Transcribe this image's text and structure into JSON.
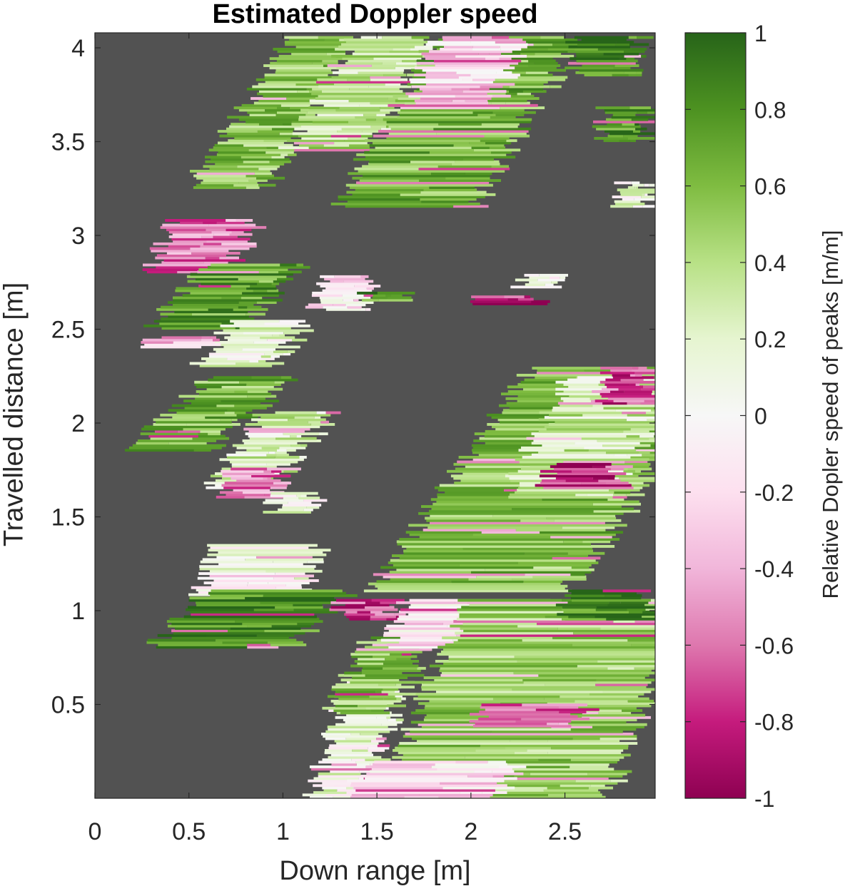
{
  "chart_data": {
    "type": "heatmap",
    "title": "Estimated Doppler speed",
    "xlabel": "Down range [m]",
    "ylabel": "Travelled distance [m]",
    "xlim": [
      0,
      2.98
    ],
    "ylim": [
      0,
      4.08
    ],
    "xticks": [
      "0",
      "0.5",
      "1",
      "1.5",
      "2",
      "2.5"
    ],
    "yticks": [
      "0.5",
      "1",
      "1.5",
      "2",
      "2.5",
      "3",
      "3.5",
      "4"
    ],
    "background_color": "#525252",
    "colorbar": {
      "label": "Relative Dopler speed of peaks [m/m]",
      "limits": [
        -1,
        1
      ],
      "ticks": [
        "1",
        "0.8",
        "0.6",
        "0.4",
        "0.2",
        "0",
        "-0.2",
        "-0.4",
        "-0.6",
        "-0.8",
        "-1"
      ],
      "colormap": [
        "#8e0152",
        "#c51b7d",
        "#de77ae",
        "#f1b6da",
        "#fde0ef",
        "#f7f7f7",
        "#e6f5d0",
        "#b8e186",
        "#7fbc41",
        "#4d9221",
        "#276419"
      ]
    },
    "clusters": [
      {
        "x0": 0.78,
        "x1": 1.18,
        "y0": 3.25,
        "y1": 4.06,
        "shift": -0.55,
        "v": 0.55
      },
      {
        "x0": 1.2,
        "x1": 1.65,
        "y0": 3.45,
        "y1": 4.06,
        "shift": -0.35,
        "v": 0.35
      },
      {
        "x0": 1.55,
        "x1": 2.3,
        "y0": 3.15,
        "y1": 4.06,
        "shift": -0.55,
        "v": 0.62
      },
      {
        "x0": 1.75,
        "x1": 2.2,
        "y0": 3.7,
        "y1": 4.06,
        "shift": -0.15,
        "v": -0.25
      },
      {
        "x0": 2.55,
        "x1": 2.9,
        "y0": 3.85,
        "y1": 4.06,
        "shift": 0.0,
        "v": 0.85
      },
      {
        "x0": 2.7,
        "x1": 2.95,
        "y0": 3.5,
        "y1": 3.68,
        "shift": 0.0,
        "v": 0.78
      },
      {
        "x0": 2.8,
        "x1": 2.96,
        "y0": 3.15,
        "y1": 3.28,
        "shift": 0.0,
        "v": 0.15
      },
      {
        "x0": 0.35,
        "x1": 0.8,
        "y0": 2.8,
        "y1": 3.08,
        "shift": -0.15,
        "v": -0.55
      },
      {
        "x0": 0.45,
        "x1": 0.95,
        "y0": 2.5,
        "y1": 2.85,
        "shift": -0.3,
        "v": 0.7
      },
      {
        "x0": 0.65,
        "x1": 1.05,
        "y0": 2.3,
        "y1": 2.55,
        "shift": -0.2,
        "v": 0.15
      },
      {
        "x0": 0.3,
        "x1": 0.6,
        "y0": 2.4,
        "y1": 2.46,
        "shift": 0.0,
        "v": -0.35
      },
      {
        "x0": 1.2,
        "x1": 1.45,
        "y0": 2.6,
        "y1": 2.78,
        "shift": -0.05,
        "v": -0.15
      },
      {
        "x0": 1.45,
        "x1": 1.7,
        "y0": 2.65,
        "y1": 2.69,
        "shift": 0.0,
        "v": 0.75
      },
      {
        "x0": 2.25,
        "x1": 2.5,
        "y0": 2.72,
        "y1": 2.79,
        "shift": 0.0,
        "v": 0.0
      },
      {
        "x0": 2.05,
        "x1": 2.35,
        "y0": 2.63,
        "y1": 2.68,
        "shift": 0.0,
        "v": -0.85
      },
      {
        "x0": 0.4,
        "x1": 0.85,
        "y0": 1.85,
        "y1": 2.25,
        "shift": -0.45,
        "v": 0.6
      },
      {
        "x0": 0.75,
        "x1": 1.1,
        "y0": 1.65,
        "y1": 2.05,
        "shift": -0.3,
        "v": 0.25
      },
      {
        "x0": 0.7,
        "x1": 1.0,
        "y0": 1.6,
        "y1": 1.75,
        "shift": -0.05,
        "v": -0.55
      },
      {
        "x0": 0.95,
        "x1": 1.18,
        "y0": 1.52,
        "y1": 1.62,
        "shift": 0.0,
        "v": 0.1
      },
      {
        "x0": 0.6,
        "x1": 1.15,
        "y0": 1.08,
        "y1": 1.35,
        "shift": -0.1,
        "v": 0.05
      },
      {
        "x0": 1.8,
        "x1": 2.1,
        "y0": 1.3,
        "y1": 1.34,
        "shift": 0.0,
        "v": 0.85
      },
      {
        "x0": 1.9,
        "x1": 2.95,
        "y0": 1.1,
        "y1": 2.3,
        "shift": -0.85,
        "v": 0.55
      },
      {
        "x0": 2.35,
        "x1": 2.95,
        "y0": 1.6,
        "y1": 2.25,
        "shift": -0.35,
        "v": 0.3
      },
      {
        "x0": 2.4,
        "x1": 2.8,
        "y0": 1.65,
        "y1": 1.78,
        "shift": 0.0,
        "v": -0.75
      },
      {
        "x0": 2.7,
        "x1": 2.96,
        "y0": 2.1,
        "y1": 2.3,
        "shift": 0.0,
        "v": -0.7
      },
      {
        "x0": 0.45,
        "x1": 1.2,
        "y0": 0.8,
        "y1": 1.1,
        "shift": -0.3,
        "v": 0.8
      },
      {
        "x0": 1.25,
        "x1": 1.55,
        "y0": 0.0,
        "y1": 0.65,
        "shift": -0.2,
        "v": 0.12
      },
      {
        "x0": 1.35,
        "x1": 1.7,
        "y0": 0.45,
        "y1": 0.85,
        "shift": -0.2,
        "v": 0.55
      },
      {
        "x0": 1.3,
        "x1": 1.6,
        "y0": 0.95,
        "y1": 1.05,
        "shift": 0.0,
        "v": -0.7
      },
      {
        "x0": 1.6,
        "x1": 2.35,
        "y0": 0.8,
        "y1": 1.05,
        "shift": -0.1,
        "v": -0.15
      },
      {
        "x0": 1.75,
        "x1": 2.95,
        "y0": 0.0,
        "y1": 1.05,
        "shift": -0.45,
        "v": 0.5
      },
      {
        "x0": 2.05,
        "x1": 2.6,
        "y0": 0.38,
        "y1": 0.5,
        "shift": -0.05,
        "v": -0.6
      },
      {
        "x0": 1.4,
        "x1": 2.2,
        "y0": 0.0,
        "y1": 0.2,
        "shift": -0.1,
        "v": -0.2
      },
      {
        "x0": 2.5,
        "x1": 2.95,
        "y0": 0.95,
        "y1": 1.1,
        "shift": 0.0,
        "v": 0.85
      }
    ]
  }
}
